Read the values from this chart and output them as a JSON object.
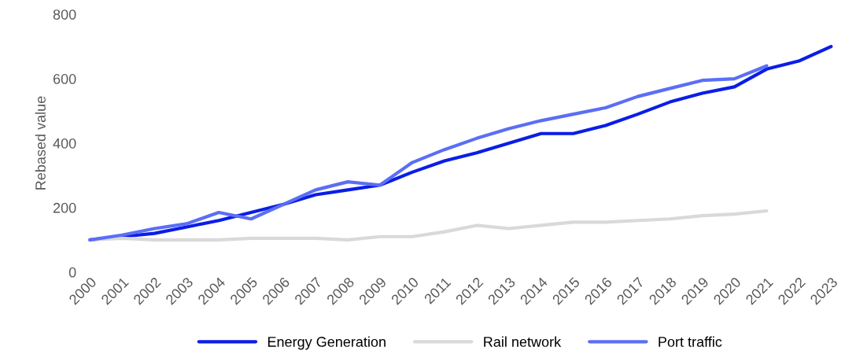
{
  "chart_data": {
    "type": "line",
    "ylabel": "Rebased value",
    "categories": [
      "2000",
      "2001",
      "2002",
      "2003",
      "2004",
      "2005",
      "2006",
      "2007",
      "2008",
      "2009",
      "2010",
      "2011",
      "2012",
      "2013",
      "2014",
      "2015",
      "2016",
      "2017",
      "2018",
      "2019",
      "2020",
      "2021",
      "2022",
      "2023"
    ],
    "series": [
      {
        "name": "Energy Generation",
        "color": "#0a1ee6",
        "values": [
          100,
          110,
          120,
          140,
          160,
          185,
          210,
          240,
          255,
          270,
          310,
          345,
          370,
          400,
          430,
          430,
          455,
          490,
          528,
          555,
          575,
          630,
          655,
          700
        ]
      },
      {
        "name": "Rail network",
        "color": "#d9d9d9",
        "values": [
          100,
          105,
          100,
          100,
          100,
          105,
          105,
          105,
          100,
          110,
          110,
          125,
          145,
          135,
          145,
          155,
          155,
          160,
          165,
          175,
          180,
          190,
          null,
          null
        ]
      },
      {
        "name": "Port traffic",
        "color": "#5b6ef5",
        "values": [
          100,
          115,
          135,
          150,
          185,
          165,
          210,
          255,
          280,
          270,
          340,
          380,
          415,
          445,
          470,
          490,
          510,
          545,
          570,
          595,
          600,
          640,
          null,
          null
        ]
      }
    ],
    "ylim": [
      0,
      800
    ],
    "yticks": [
      0,
      200,
      400,
      600,
      800
    ],
    "grid": false,
    "legend": "bottom",
    "marker": "none",
    "line_style": "solid"
  }
}
